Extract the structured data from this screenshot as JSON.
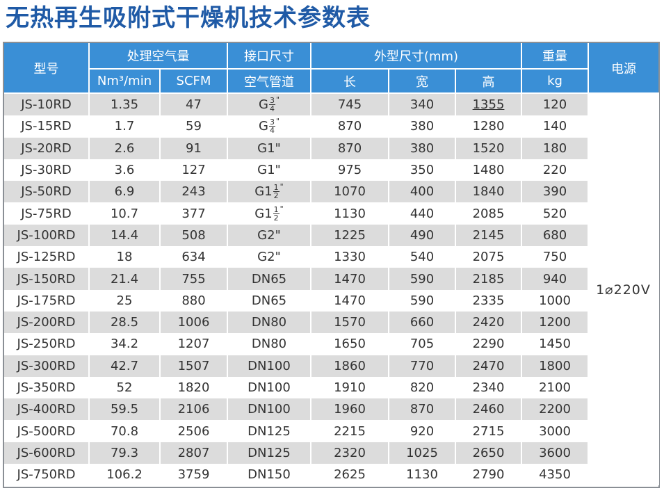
{
  "title": "无热再生吸附式干燥机技术参数表",
  "headers": {
    "model": "型号",
    "capacity": "处理空气量",
    "capacity_nm3": "Nm³/min",
    "capacity_scfm": "SCFM",
    "port_size": "接口尺寸",
    "port_pipe": "空气管道",
    "dimensions": "外型尺寸(mm)",
    "length": "长",
    "width": "宽",
    "height": "高",
    "weight": "重量",
    "weight_unit": "kg",
    "power": "电源"
  },
  "power_value": "1⌀220V",
  "rows": [
    {
      "model": "JS-10RD",
      "nm3": "1.35",
      "scfm": "47",
      "port": {
        "prefix": "G",
        "num": "3",
        "den": "4"
      },
      "l": "745",
      "w": "340",
      "h": "1355",
      "kg": "120"
    },
    {
      "model": "JS-15RD",
      "nm3": "1.7",
      "scfm": "59",
      "port": {
        "prefix": "G",
        "num": "3",
        "den": "4"
      },
      "l": "870",
      "w": "380",
      "h": "1280",
      "kg": "140"
    },
    {
      "model": "JS-20RD",
      "nm3": "2.6",
      "scfm": "91",
      "port": "G1\"",
      "l": "870",
      "w": "380",
      "h": "1520",
      "kg": "180"
    },
    {
      "model": "JS-30RD",
      "nm3": "3.6",
      "scfm": "127",
      "port": "G1\"",
      "l": "975",
      "w": "350",
      "h": "1480",
      "kg": "220"
    },
    {
      "model": "JS-50RD",
      "nm3": "6.9",
      "scfm": "243",
      "port": {
        "prefix": "G1",
        "num": "1",
        "den": "2"
      },
      "l": "1070",
      "w": "400",
      "h": "1840",
      "kg": "390"
    },
    {
      "model": "JS-75RD",
      "nm3": "10.7",
      "scfm": "377",
      "port": {
        "prefix": "G1",
        "num": "1",
        "den": "2"
      },
      "l": "1130",
      "w": "440",
      "h": "2085",
      "kg": "520"
    },
    {
      "model": "JS-100RD",
      "nm3": "14.4",
      "scfm": "508",
      "port": "G2\"",
      "l": "1225",
      "w": "490",
      "h": "2145",
      "kg": "680"
    },
    {
      "model": "JS-125RD",
      "nm3": "18",
      "scfm": "634",
      "port": "G2\"",
      "l": "1330",
      "w": "540",
      "h": "2075",
      "kg": "750"
    },
    {
      "model": "JS-150RD",
      "nm3": "21.4",
      "scfm": "755",
      "port": "DN65",
      "l": "1470",
      "w": "590",
      "h": "2185",
      "kg": "940"
    },
    {
      "model": "JS-175RD",
      "nm3": "25",
      "scfm": "880",
      "port": "DN65",
      "l": "1470",
      "w": "590",
      "h": "2335",
      "kg": "1000"
    },
    {
      "model": "JS-200RD",
      "nm3": "28.5",
      "scfm": "1006",
      "port": "DN80",
      "l": "1570",
      "w": "660",
      "h": "2420",
      "kg": "1200"
    },
    {
      "model": "JS-250RD",
      "nm3": "34.2",
      "scfm": "1207",
      "port": "DN80",
      "l": "1650",
      "w": "705",
      "h": "2290",
      "kg": "1450"
    },
    {
      "model": "JS-300RD",
      "nm3": "42.7",
      "scfm": "1507",
      "port": "DN100",
      "l": "1860",
      "w": "770",
      "h": "2470",
      "kg": "1800"
    },
    {
      "model": "JS-350RD",
      "nm3": "52",
      "scfm": "1820",
      "port": "DN100",
      "l": "1910",
      "w": "820",
      "h": "2340",
      "kg": "2100"
    },
    {
      "model": "JS-400RD",
      "nm3": "59.5",
      "scfm": "2106",
      "port": "DN100",
      "l": "1960",
      "w": "870",
      "h": "2460",
      "kg": "2200"
    },
    {
      "model": "JS-500RD",
      "nm3": "70.8",
      "scfm": "2506",
      "port": "DN125",
      "l": "2215",
      "w": "920",
      "h": "2715",
      "kg": "3000"
    },
    {
      "model": "JS-600RD",
      "nm3": "79.3",
      "scfm": "2807",
      "port": "DN125",
      "l": "2320",
      "w": "1025",
      "h": "2650",
      "kg": "3600"
    },
    {
      "model": "JS-750RD",
      "nm3": "106.2",
      "scfm": "3759",
      "port": "DN150",
      "l": "2625",
      "w": "1130",
      "h": "2790",
      "kg": "4350"
    }
  ]
}
